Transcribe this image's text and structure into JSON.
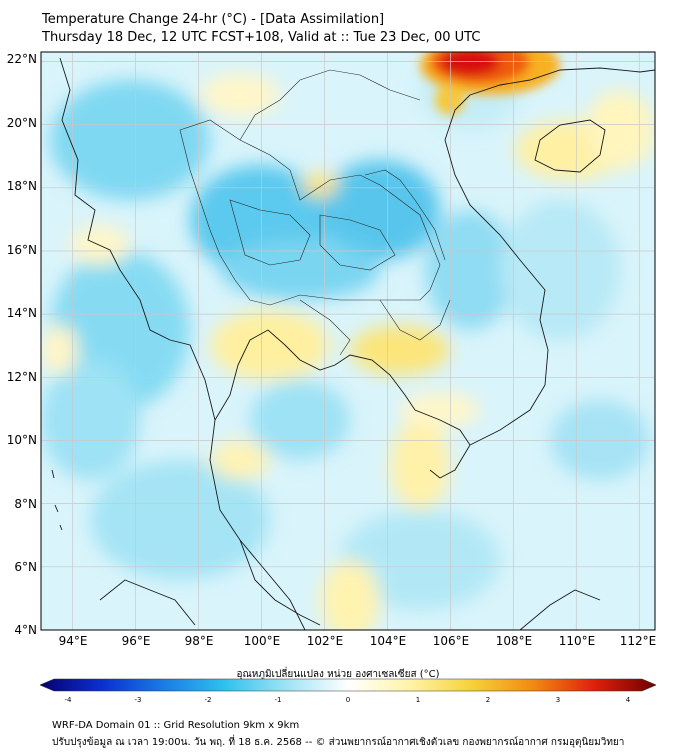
{
  "header": {
    "title_line1": "Temperature Change 24-hr (°C) - [Data Assimilation]",
    "title_line2": "Thursday 18 Dec, 12 UTC FCST+108, Valid at :: Tue 23 Dec, 00 UTC"
  },
  "map": {
    "lat_labels": [
      "22°N",
      "20°N",
      "18°N",
      "16°N",
      "14°N",
      "12°N",
      "10°N",
      "8°N",
      "6°N",
      "4°N"
    ],
    "lon_labels": [
      "94°E",
      "96°E",
      "98°E",
      "100°E",
      "102°E",
      "104°E",
      "106°E",
      "108°E",
      "110°E",
      "112°E"
    ],
    "lat_range": [
      4,
      22.3
    ],
    "lon_range": [
      93,
      112.5
    ],
    "gridlines": true
  },
  "colorbar": {
    "label": "อุณหภูมิเปลี่ยนแปลง หน่วย องศาเซลเซียส (°C)",
    "ticks": [
      "-4",
      "-3",
      "-2",
      "-1",
      "0",
      "1",
      "2",
      "3",
      "4"
    ],
    "range": [
      -4,
      4
    ],
    "colors": [
      "#08006e",
      "#0a2fd0",
      "#1a7be6",
      "#2fc1ee",
      "#9fe3f5",
      "#ffffff",
      "#fff4a8",
      "#f6d23a",
      "#f28a12",
      "#e0200c",
      "#6e0000"
    ]
  },
  "footer": {
    "line1": "WRF-DA Domain 01 :: Grid Resolution 9km x 9km",
    "line2": "ปรับปรุงข้อมูล ณ เวลา 19:00น. วัน พฤ. ที่ 18 ธ.ค. 2568 -- © ส่วนพยากรณ์อากาศเชิงตัวเลข กองพยากรณ์อากาศ กรมอุตุนิยมวิทยา"
  }
}
